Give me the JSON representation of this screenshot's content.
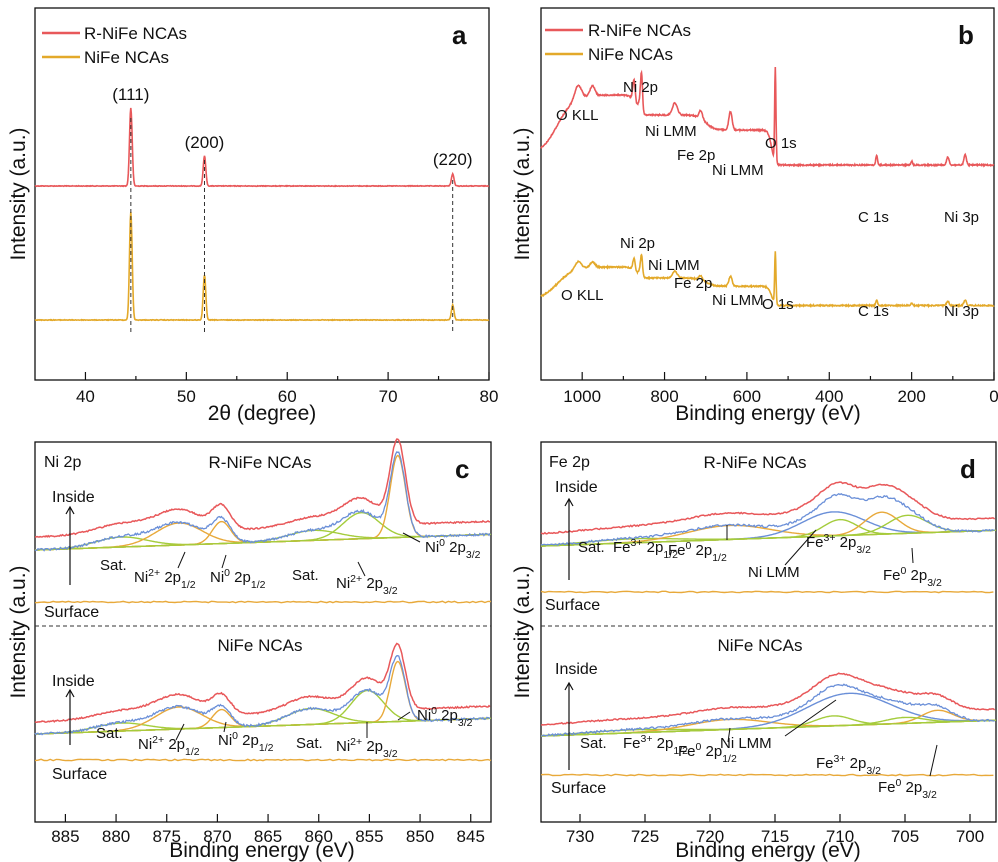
{
  "figure": {
    "panels": [
      {
        "letter": "a",
        "xlabel": "2θ (degree)",
        "ylabel": "Intensity (a.u.)"
      },
      {
        "letter": "b",
        "xlabel": "Binding energy (eV)",
        "ylabel": "Intensity (a.u.)"
      },
      {
        "letter": "c",
        "xlabel": "Binding energy (eV)",
        "ylabel": "Intensity (a.u.)"
      },
      {
        "letter": "d",
        "xlabel": "Binding energy (eV)",
        "ylabel": "Intensity (a.u.)"
      }
    ]
  },
  "chart_data": [
    {
      "panel": "a",
      "type": "line",
      "xlabel": "2θ (degree)",
      "ylabel": "Intensity (a.u.)",
      "xlim": [
        35,
        80
      ],
      "xticks": [
        40,
        50,
        60,
        70,
        80
      ],
      "legend": {
        "placement": "top-left",
        "entries": [
          "R-NiFe NCAs",
          "NiFe NCAs"
        ]
      },
      "colors": {
        "R-NiFe NCAs": "#e8585a",
        "NiFe NCAs": "#e3a92a"
      },
      "peaks": [
        {
          "x": 44.5,
          "label": "(111)"
        },
        {
          "x": 51.8,
          "label": "(200)"
        },
        {
          "x": 76.4,
          "label": "(220)"
        }
      ],
      "series": [
        {
          "name": "R-NiFe NCAs",
          "baseline": 0.62,
          "peaks": [
            [
              44.5,
              0.52
            ],
            [
              51.8,
              0.2
            ],
            [
              76.4,
              0.08
            ]
          ]
        },
        {
          "name": "NiFe NCAs",
          "baseline": 0.0,
          "peaks": [
            [
              44.5,
              0.72
            ],
            [
              51.8,
              0.3
            ],
            [
              76.4,
              0.1
            ]
          ]
        }
      ]
    },
    {
      "panel": "b",
      "type": "line",
      "xlabel": "Binding energy (eV)",
      "ylabel": "Intensity (a.u.)",
      "xlim": [
        1100,
        0
      ],
      "xticks": [
        1000,
        800,
        600,
        400,
        200,
        0
      ],
      "legend": {
        "placement": "top-left",
        "entries": [
          "R-NiFe NCAs",
          "NiFe NCAs"
        ]
      },
      "colors": {
        "R-NiFe NCAs": "#e8585a",
        "NiFe NCAs": "#e3a92a"
      },
      "annotations_top": [
        {
          "text": "O KLL",
          "x": 1010
        },
        {
          "text": "Ni 2p",
          "x": 855
        },
        {
          "text": "Ni LMM",
          "x": 800
        },
        {
          "text": "Fe 2p",
          "x": 715
        },
        {
          "text": "Ni LMM",
          "x": 640
        },
        {
          "text": "O 1s",
          "x": 530
        },
        {
          "text": "C 1s",
          "x": 285
        },
        {
          "text": "Ni 3p",
          "x": 85
        }
      ],
      "annotations_bottom": [
        {
          "text": "O KLL",
          "x": 1010
        },
        {
          "text": "Ni 2p",
          "x": 855
        },
        {
          "text": "Ni LMM",
          "x": 800
        },
        {
          "text": "Fe 2p",
          "x": 715
        },
        {
          "text": "Ni LMM",
          "x": 640
        },
        {
          "text": "O 1s",
          "x": 530
        },
        {
          "text": "C 1s",
          "x": 285
        },
        {
          "text": "Ni 3p",
          "x": 85
        }
      ]
    },
    {
      "panel": "c",
      "type": "line",
      "title": "Ni 2p",
      "xlabel": "Binding energy (eV)",
      "ylabel": "Intensity (a.u.)",
      "xlim": [
        888,
        843
      ],
      "xticks": [
        885,
        880,
        875,
        870,
        865,
        860,
        855,
        850,
        845
      ],
      "subpanels": [
        {
          "title": "R-NiFe NCAs",
          "inside_label": "Inside",
          "surface_label": "Surface",
          "peak_labels": [
            {
              "text": "Sat.",
              "x": 879
            },
            {
              "text": "Ni²⁺ 2p₁/₂",
              "x": 874
            },
            {
              "text": "Ni⁰ 2p₁/₂",
              "x": 869.5
            },
            {
              "text": "Sat.",
              "x": 860
            },
            {
              "text": "Ni²⁺ 2p₃/₂",
              "x": 855.5
            },
            {
              "text": "Ni⁰ 2p₃/₂",
              "x": 852.2
            }
          ]
        },
        {
          "title": "NiFe NCAs",
          "inside_label": "Inside",
          "surface_label": "Surface",
          "peak_labels": [
            {
              "text": "Sat.",
              "x": 879
            },
            {
              "text": "Ni²⁺ 2p₁/₂",
              "x": 874
            },
            {
              "text": "Ni⁰ 2p₁/₂",
              "x": 869.5
            },
            {
              "text": "Sat.",
              "x": 860
            },
            {
              "text": "Ni²⁺ 2p₃/₂",
              "x": 855.5
            },
            {
              "text": "Ni⁰ 2p₃/₂",
              "x": 852.2
            }
          ]
        }
      ]
    },
    {
      "panel": "d",
      "type": "line",
      "title": "Fe 2p",
      "xlabel": "Binding energy (eV)",
      "ylabel": "Intensity (a.u.)",
      "xlim": [
        733,
        698
      ],
      "xticks": [
        730,
        725,
        720,
        715,
        710,
        705,
        700
      ],
      "subpanels": [
        {
          "title": "R-NiFe NCAs",
          "inside_label": "Inside",
          "surface_label": "Surface",
          "peak_labels": [
            {
              "text": "Sat.",
              "x": 729
            },
            {
              "text": "Fe³⁺ 2p₁/₂",
              "x": 724
            },
            {
              "text": "Fe⁰ 2p₁/₂",
              "x": 719
            },
            {
              "text": "Ni LMM",
              "x": 712
            },
            {
              "text": "Fe³⁺ 2p₃/₂",
              "x": 710.5
            },
            {
              "text": "Fe⁰ 2p₃/₂",
              "x": 706.8
            }
          ]
        },
        {
          "title": "NiFe NCAs",
          "inside_label": "Inside",
          "surface_label": "Surface",
          "peak_labels": [
            {
              "text": "Sat.",
              "x": 729
            },
            {
              "text": "Fe³⁺ 2p₁/₂",
              "x": 724
            },
            {
              "text": "Fe⁰ 2p₁/₂",
              "x": 719
            },
            {
              "text": "Ni LMM",
              "x": 712
            },
            {
              "text": "Fe³⁺ 2p₃/₂",
              "x": 710.5
            },
            {
              "text": "Fe⁰ 2p₃/₂",
              "x": 706.8
            }
          ]
        }
      ]
    }
  ]
}
